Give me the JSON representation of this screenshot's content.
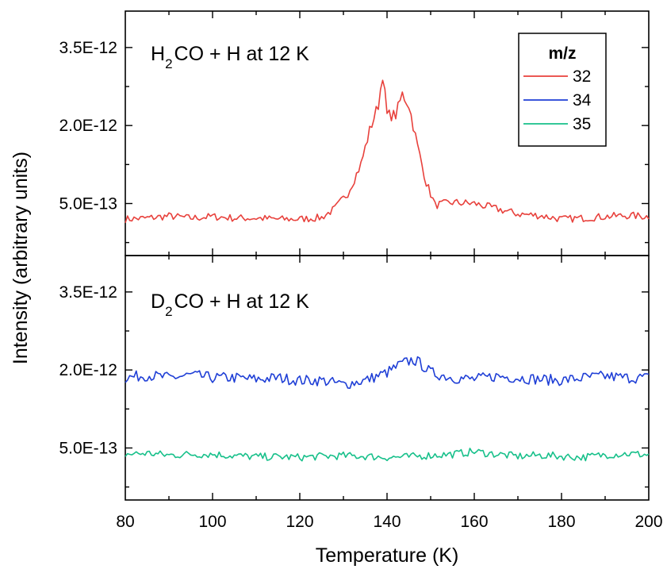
{
  "chart_data": {
    "type": "line",
    "xlabel": "Temperature (K)",
    "ylabel": "Intensity (arbitrary units)",
    "xlim": [
      80,
      200
    ],
    "x_ticks": [
      80,
      100,
      120,
      140,
      160,
      180,
      200
    ],
    "x_tick_labels": [
      "80",
      "100",
      "120",
      "140",
      "160",
      "180",
      "200"
    ],
    "legend": {
      "title": "m/z",
      "position": "top-right",
      "entries": [
        {
          "label": "32",
          "color": "#e8413c"
        },
        {
          "label": "34",
          "color": "#1f3fd6"
        },
        {
          "label": "35",
          "color": "#17c08a"
        }
      ]
    },
    "panels": [
      {
        "title_main": "H",
        "title_sub": "2",
        "title_rest": "CO + H at 12 K",
        "ylim": [
          -5e-13,
          4.2e-12
        ],
        "y_ticks": [
          5e-13,
          2e-12,
          3.5e-12
        ],
        "y_tick_labels": [
          "5.0E-13",
          "2.0E-12",
          "3.5E-12"
        ],
        "series": [
          {
            "name": "32",
            "color": "#e8413c",
            "x": [
              80,
              85,
              90,
              95,
              100,
              105,
              110,
              115,
              120,
              125,
              128,
              131,
              134,
              136,
              138,
              139,
              140,
              142,
              143.5,
              145,
              147,
              149,
              151,
              155,
              160,
              165,
              170,
              175,
              180,
              185,
              190,
              195,
              200
            ],
            "y": [
              2e-13,
              2.2e-13,
              2.6e-13,
              2.2e-13,
              2.5e-13,
              2.2e-13,
              2.2e-13,
              2e-13,
              2e-13,
              2.3e-13,
              4e-13,
              7e-13,
              1.25e-12,
              1.9e-12,
              2.4e-12,
              3e-12,
              2.2e-12,
              2.2e-12,
              2.6e-12,
              2.4e-12,
              1.6e-12,
              9e-13,
              4.7e-13,
              5.2e-13,
              5e-13,
              4e-13,
              3e-13,
              2.7e-13,
              2e-13,
              2.2e-13,
              2.5e-13,
              2.7e-13,
              2.5e-13
            ]
          }
        ]
      },
      {
        "title_main": "D",
        "title_sub": "2",
        "title_rest": "CO + H at 12 K",
        "ylim": [
          -5e-13,
          4.2e-12
        ],
        "y_ticks": [
          5e-13,
          2e-12,
          3.5e-12
        ],
        "y_tick_labels": [
          "5.0E-13",
          "2.0E-12",
          "3.5E-12"
        ],
        "series": [
          {
            "name": "34",
            "color": "#1f3fd6",
            "x": [
              80,
              85,
              90,
              95,
              100,
              105,
              110,
              115,
              120,
              125,
              130,
              135,
              140,
              143,
              146,
              148,
              150,
              155,
              160,
              165,
              170,
              175,
              180,
              185,
              190,
              195,
              200
            ],
            "y": [
              1.85e-12,
              1.9e-12,
              1.85e-12,
              1.9e-12,
              1.85e-12,
              1.85e-12,
              1.82e-12,
              1.85e-12,
              1.8e-12,
              1.8e-12,
              1.72e-12,
              1.8e-12,
              1.95e-12,
              2.1e-12,
              2.2e-12,
              2.1e-12,
              1.95e-12,
              1.85e-12,
              1.82e-12,
              1.88e-12,
              1.85e-12,
              1.82e-12,
              1.8e-12,
              1.85e-12,
              1.88e-12,
              1.85e-12,
              1.85e-12
            ]
          },
          {
            "name": "35",
            "color": "#17c08a",
            "x": [
              80,
              85,
              90,
              95,
              100,
              105,
              110,
              115,
              120,
              125,
              130,
              135,
              140,
              145,
              150,
              155,
              160,
              165,
              170,
              175,
              180,
              185,
              190,
              195,
              200
            ],
            "y": [
              3.8e-13,
              4e-13,
              3.6e-13,
              3.8e-13,
              3.8e-13,
              3.5e-13,
              3.3e-13,
              3.3e-13,
              3.2e-13,
              3.4e-13,
              3.5e-13,
              3.4e-13,
              3.2e-13,
              3.3e-13,
              3.6e-13,
              3.8e-13,
              4.3e-13,
              3.8e-13,
              3.4e-13,
              3.6e-13,
              3.4e-13,
              3.2e-13,
              3.7e-13,
              3.9e-13,
              3.7e-13
            ]
          }
        ]
      }
    ]
  }
}
